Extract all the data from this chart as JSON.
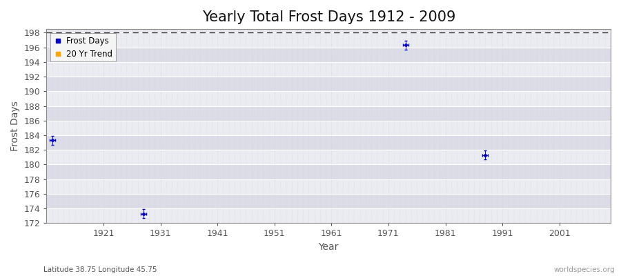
{
  "title": "Yearly Total Frost Days 1912 - 2009",
  "xlabel": "Year",
  "ylabel": "Frost Days",
  "xlim": [
    1911,
    2010
  ],
  "ylim": [
    172,
    198.5
  ],
  "yticks": [
    172,
    174,
    176,
    178,
    180,
    182,
    184,
    186,
    188,
    190,
    192,
    194,
    196,
    198
  ],
  "xticks": [
    1921,
    1931,
    1941,
    1951,
    1961,
    1971,
    1981,
    1991,
    2001
  ],
  "data_points": [
    {
      "year": 1912,
      "value": 183.3
    },
    {
      "year": 1928,
      "value": 173.3
    },
    {
      "year": 1974,
      "value": 196.3
    },
    {
      "year": 1988,
      "value": 181.3
    }
  ],
  "point_color": "#0000cc",
  "trend_color": "#ffa500",
  "background_color": "#e8e8ee",
  "band_color_light": "#ebebf2",
  "band_color_dark": "#dcdce6",
  "grid_major_color": "#ffffff",
  "grid_minor_color": "#d0d0dc",
  "dashed_line_y": 198,
  "dashed_line_color": "#333333",
  "footnote_left": "Latitude 38.75 Longitude 45.75",
  "footnote_right": "worldspecies.org",
  "legend_labels": [
    "Frost Days",
    "20 Yr Trend"
  ],
  "legend_colors": [
    "#0000cc",
    "#ffa500"
  ],
  "title_fontsize": 15,
  "axis_fontsize": 10,
  "tick_fontsize": 9,
  "tick_color": "#555555",
  "spine_color": "#888888"
}
